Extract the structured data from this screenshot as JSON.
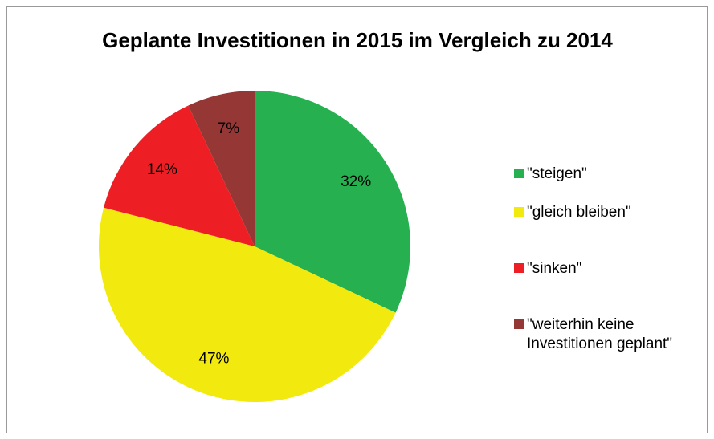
{
  "chart_data": {
    "type": "pie",
    "title": "Geplante Investitionen in 2015 im Vergleich zu 2014",
    "categories": [
      "\"steigen\"",
      "\"gleich bleiben\"",
      "\"sinken\"",
      "\"weiterhin keine Investitionen geplant\""
    ],
    "values": [
      32,
      47,
      14,
      7
    ],
    "value_labels": [
      "32%",
      "47%",
      "14%",
      "7%"
    ],
    "colors": [
      "#26b050",
      "#f2e90f",
      "#ee1f24",
      "#953735"
    ],
    "legend": "right"
  }
}
